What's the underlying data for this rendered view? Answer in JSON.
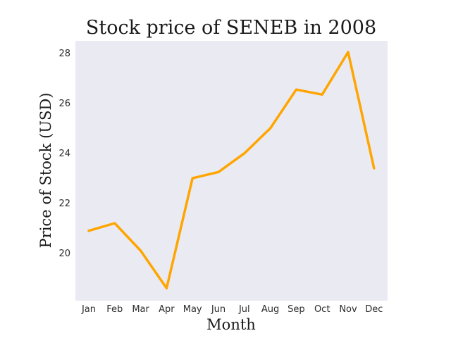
{
  "chart_data": {
    "type": "line",
    "title": "Stock price of SENEB in 2008",
    "xlabel": "Month",
    "ylabel": "Price of Stock (USD)",
    "categories": [
      "Jan",
      "Feb",
      "Mar",
      "Apr",
      "May",
      "Jun",
      "Jul",
      "Aug",
      "Sep",
      "Oct",
      "Nov",
      "Dec"
    ],
    "series": [
      {
        "values": [
          20.9,
          21.2,
          20.1,
          18.6,
          23.0,
          23.25,
          24.0,
          25.0,
          26.55,
          26.35,
          28.05,
          23.4
        ]
      }
    ],
    "yticks": [
      20,
      22,
      24,
      26,
      28
    ],
    "ylim": [
      18.1,
      28.5
    ],
    "grid": false,
    "line_color": "#ffa500",
    "plot_background": "#eaeaf2"
  }
}
